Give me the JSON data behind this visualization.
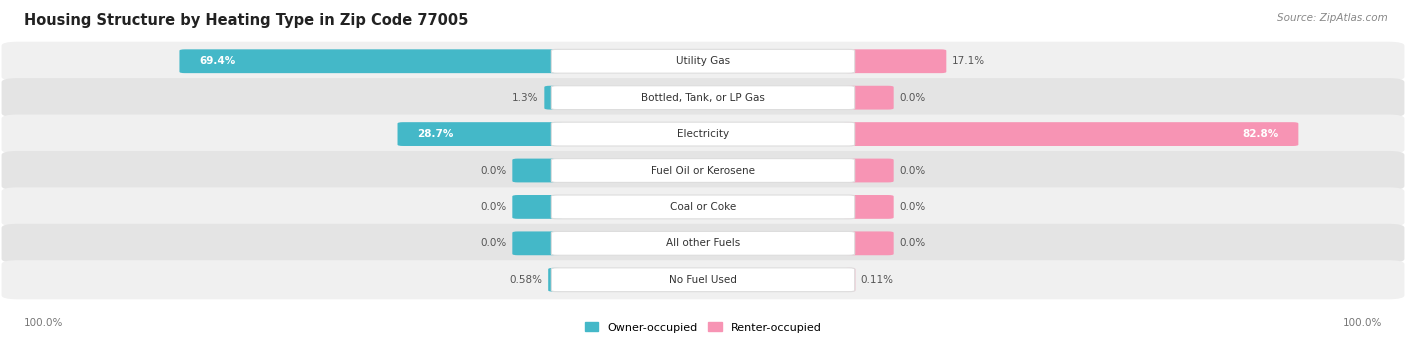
{
  "title": "Housing Structure by Heating Type in Zip Code 77005",
  "source": "Source: ZipAtlas.com",
  "categories": [
    "Utility Gas",
    "Bottled, Tank, or LP Gas",
    "Electricity",
    "Fuel Oil or Kerosene",
    "Coal or Coke",
    "All other Fuels",
    "No Fuel Used"
  ],
  "owner_values": [
    69.4,
    1.3,
    28.7,
    0.0,
    0.0,
    0.0,
    0.58
  ],
  "renter_values": [
    17.1,
    0.0,
    82.8,
    0.0,
    0.0,
    0.0,
    0.11
  ],
  "owner_color": "#44B8C8",
  "renter_color": "#F794B4",
  "owner_label": "Owner-occupied",
  "renter_label": "Renter-occupied",
  "row_bg_odd": "#F0F0F0",
  "row_bg_even": "#E4E4E4",
  "title_fontsize": 10.5,
  "val_fontsize": 7.5,
  "cat_fontsize": 7.5,
  "source_fontsize": 7.5,
  "axis_label_left": "100.0%",
  "axis_label_right": "100.0%",
  "max_value": 100.0
}
